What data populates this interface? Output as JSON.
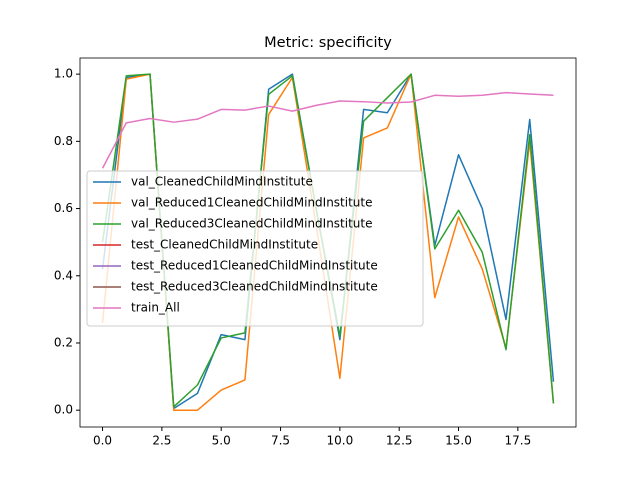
{
  "chart_data": {
    "type": "line",
    "title": "Metric: specificity",
    "x": [
      0,
      1,
      2,
      3,
      4,
      5,
      6,
      7,
      8,
      9,
      10,
      11,
      12,
      13,
      14,
      15,
      16,
      17,
      18,
      19
    ],
    "series": [
      {
        "name": "val_CleanedChildMindInstitute",
        "color": "#1f77b4",
        "values": [
          0.42,
          0.99,
          1.0,
          0.005,
          0.05,
          0.225,
          0.21,
          0.955,
          1.0,
          0.6,
          0.21,
          0.895,
          0.885,
          1.0,
          0.49,
          0.76,
          0.6,
          0.27,
          0.865,
          0.085
        ]
      },
      {
        "name": "val_Reduced1CleanedChildMindInstitute",
        "color": "#ff7f0e",
        "values": [
          0.26,
          0.985,
          1.0,
          0.0,
          0.0,
          0.06,
          0.09,
          0.88,
          0.99,
          0.55,
          0.095,
          0.81,
          0.84,
          1.0,
          0.335,
          0.575,
          0.42,
          0.185,
          0.8,
          0.02
        ]
      },
      {
        "name": "val_Reduced3CleanedChildMindInstitute",
        "color": "#2ca02c",
        "values": [
          0.5,
          0.995,
          1.0,
          0.01,
          0.075,
          0.215,
          0.23,
          0.94,
          0.995,
          0.6,
          0.22,
          0.86,
          0.93,
          1.0,
          0.48,
          0.595,
          0.47,
          0.18,
          0.82,
          0.02
        ]
      },
      {
        "name": "test_CleanedChildMindInstitute",
        "color": "#d62728",
        "values": [
          null,
          null,
          null,
          null,
          null,
          null,
          null,
          null,
          null,
          null,
          null,
          null,
          null,
          null,
          null,
          null,
          null,
          null,
          null,
          null
        ]
      },
      {
        "name": "test_Reduced1CleanedChildMindInstitute",
        "color": "#9467bd",
        "values": [
          null,
          null,
          null,
          null,
          null,
          null,
          null,
          null,
          null,
          null,
          null,
          null,
          null,
          null,
          null,
          null,
          null,
          null,
          null,
          null
        ]
      },
      {
        "name": "test_Reduced3CleanedChildMindInstitute",
        "color": "#8c564b",
        "values": [
          null,
          null,
          null,
          null,
          null,
          null,
          null,
          null,
          null,
          null,
          null,
          null,
          null,
          null,
          null,
          null,
          null,
          null,
          null,
          null
        ]
      },
      {
        "name": "train_All",
        "color": "#e377c2",
        "values": [
          0.72,
          0.855,
          0.868,
          0.857,
          0.866,
          0.895,
          0.893,
          0.905,
          0.89,
          0.907,
          0.92,
          0.918,
          0.914,
          0.917,
          0.937,
          0.934,
          0.937,
          0.945,
          0.941,
          0.937
        ]
      }
    ],
    "xlim": [
      -0.95,
      19.95
    ],
    "xticks": [
      {
        "value": 0,
        "label": "0.0"
      },
      {
        "value": 2.5,
        "label": "2.5"
      },
      {
        "value": 5,
        "label": "5.0"
      },
      {
        "value": 7.5,
        "label": "7.5"
      },
      {
        "value": 10,
        "label": "10.0"
      },
      {
        "value": 12.5,
        "label": "12.5"
      },
      {
        "value": 15,
        "label": "15.0"
      },
      {
        "value": 17.5,
        "label": "17.5"
      }
    ],
    "ylim": [
      -0.05,
      1.048
    ],
    "yticks": [
      {
        "value": 0,
        "label": "0.0"
      },
      {
        "value": 0.2,
        "label": "0.2"
      },
      {
        "value": 0.4,
        "label": "0.4"
      },
      {
        "value": 0.6,
        "label": "0.6"
      },
      {
        "value": 0.8,
        "label": "0.8"
      },
      {
        "value": 1.0,
        "label": "1.0"
      }
    ],
    "legend": "center left",
    "grid": false
  }
}
